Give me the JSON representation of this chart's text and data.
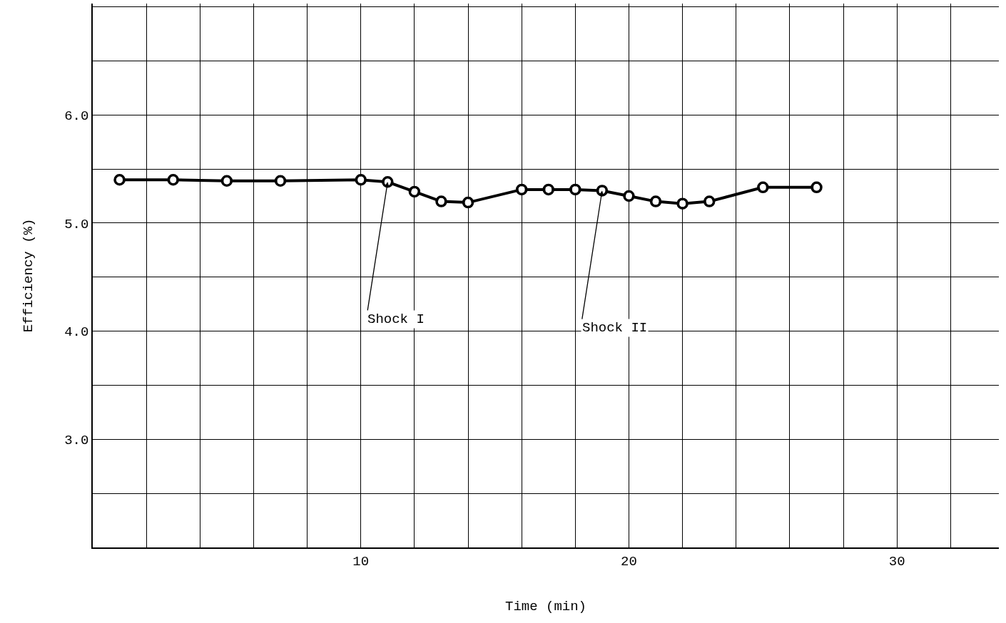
{
  "chart_data": {
    "type": "line",
    "xlabel": "Time (min)",
    "ylabel": "Efficiency (%)",
    "x": [
      1,
      3,
      5,
      7,
      10,
      11,
      12,
      13,
      14,
      16,
      17,
      18,
      19,
      20,
      21,
      22,
      23,
      25,
      27
    ],
    "series": [
      {
        "color": "#000000",
        "values": [
          5.4,
          5.4,
          5.39,
          5.39,
          5.4,
          5.38,
          5.29,
          5.2,
          5.19,
          5.31,
          5.31,
          5.31,
          5.3,
          5.25,
          5.2,
          5.18,
          5.2,
          5.33,
          5.33
        ]
      }
    ],
    "xlim": [
      0,
      33.8
    ],
    "xticks": [
      {
        "value": 2,
        "label": null
      },
      {
        "value": 4,
        "label": null
      },
      {
        "value": 6,
        "label": null
      },
      {
        "value": 8,
        "label": null
      },
      10,
      {
        "value": 12,
        "label": null
      },
      {
        "value": 14,
        "label": null
      },
      {
        "value": 16,
        "label": null
      },
      {
        "value": 18,
        "label": null
      },
      20,
      {
        "value": 22,
        "label": null
      },
      {
        "value": 24,
        "label": null
      },
      {
        "value": 26,
        "label": null
      },
      {
        "value": 28,
        "label": null
      },
      30,
      {
        "value": 32,
        "label": null
      }
    ],
    "ylim": [
      2.0,
      7.03
    ],
    "yticks": [
      {
        "value": 2.5,
        "label": null
      },
      {
        "value": 3,
        "label": "3.0"
      },
      {
        "value": 3.5,
        "label": null
      },
      {
        "value": 4,
        "label": "4.0"
      },
      {
        "value": 4.5,
        "label": null
      },
      {
        "value": 5,
        "label": "5.0"
      },
      {
        "value": 5.5,
        "label": null
      },
      {
        "value": 6,
        "label": "6.0"
      },
      {
        "value": 6.5,
        "label": null
      },
      {
        "value": 7,
        "label": null
      }
    ],
    "grid": true,
    "marker": "circle",
    "line_style": "solid",
    "annotations": [
      {
        "text": "Shock I",
        "x": 11,
        "y": 5.38
      },
      {
        "text": "Shock II",
        "x": 19,
        "y": 5.3
      }
    ]
  }
}
